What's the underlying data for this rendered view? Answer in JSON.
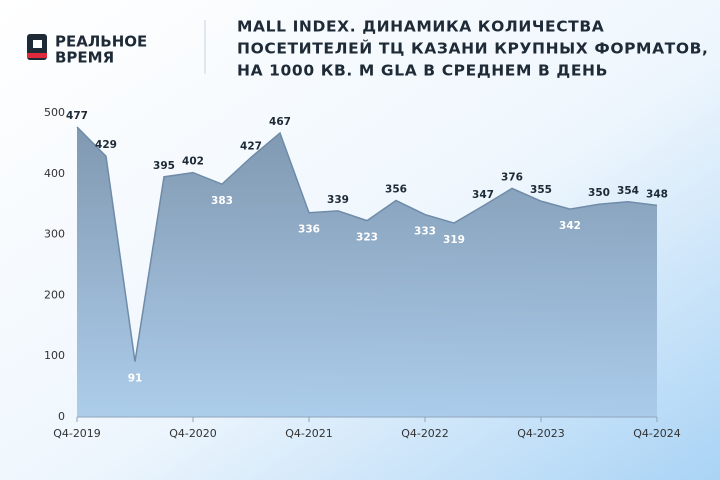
{
  "logo": {
    "line1": "РЕАЛЬНОЕ",
    "line2": "ВРЕМЯ"
  },
  "chart_data": {
    "type": "area",
    "title_lines": [
      "MALL INDEX. ДИНАМИКА КОЛИЧЕСТВА",
      "ПОСЕТИТЕЛЕЙ ТЦ КАЗАНИ КРУПНЫХ ФОРМАТОВ,",
      "НА 1000 КВ. М GLA В СРЕДНЕМ В ДЕНЬ"
    ],
    "categories": [
      "Q4-2019",
      null,
      null,
      null,
      "Q4-2020",
      null,
      null,
      null,
      "Q4-2021",
      null,
      null,
      null,
      "Q4-2022",
      null,
      null,
      null,
      "Q4-2023",
      null,
      null,
      null,
      "Q4-2024"
    ],
    "values": [
      477,
      429,
      91,
      395,
      402,
      383,
      427,
      467,
      336,
      339,
      323,
      356,
      333,
      319,
      347,
      376,
      355,
      342,
      350,
      354,
      348
    ],
    "color": "#6f8ba8",
    "ylim": [
      0,
      500
    ],
    "yticks": [
      0,
      100,
      200,
      300,
      400,
      500
    ],
    "grid": false
  }
}
